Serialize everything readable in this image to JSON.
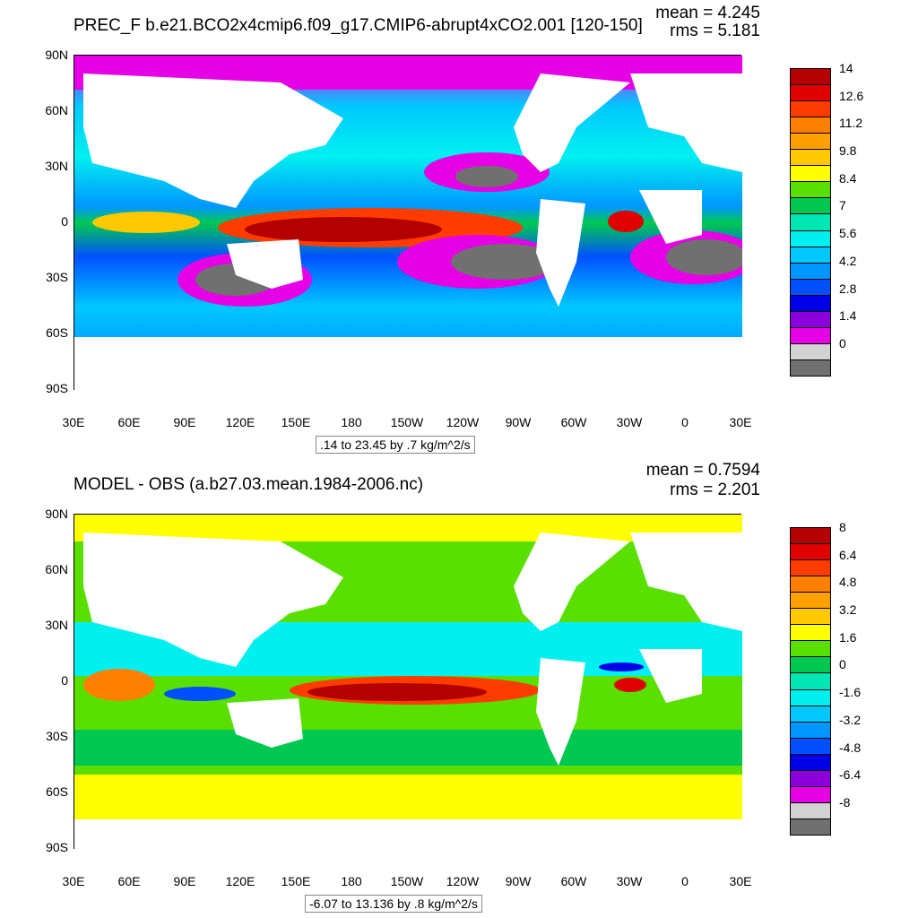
{
  "panels": [
    {
      "title": "PREC_F b.e21.BCO2x4cmip6.f09_g17.CMIP6-abrupt4xCO2.001 [120-150]",
      "mean": "mean = 4.245",
      "rms": "rms = 5.181",
      "range_label": ".14 to 23.45 by .7 kg/m^2/s",
      "lat_labels": [
        "90N",
        "60N",
        "30N",
        "0",
        "30S",
        "60S",
        "90S"
      ],
      "lon_labels": [
        "30E",
        "60E",
        "90E",
        "120E",
        "150E",
        "180",
        "150W",
        "120W",
        "90W",
        "60W",
        "30W",
        "0",
        "30E"
      ],
      "legend_labels": [
        "14",
        "12.6",
        "11.2",
        "9.8",
        "8.4",
        "7",
        "5.6",
        "4.2",
        "2.8",
        "1.4",
        "0"
      ],
      "legend_colors": [
        "#b30000",
        "#e00000",
        "#ff3c00",
        "#ff7f00",
        "#ffa000",
        "#ffc800",
        "#ffff00",
        "#5ae000",
        "#00c850",
        "#00e6b4",
        "#00f0f0",
        "#00c8ff",
        "#0096ff",
        "#0050ff",
        "#0000e6",
        "#8c00dc",
        "#e600e6",
        "#d2d2d2",
        "#707070"
      ]
    },
    {
      "title": "MODEL - OBS (a.b27.03.mean.1984-2006.nc)",
      "mean": "mean = 0.7594",
      "rms": "rms = 2.201",
      "range_label": "-6.07 to 13.136 by .8 kg/m^2/s",
      "lat_labels": [
        "90N",
        "60N",
        "30N",
        "0",
        "30S",
        "60S",
        "90S"
      ],
      "lon_labels": [
        "30E",
        "60E",
        "90E",
        "120E",
        "150E",
        "180",
        "150W",
        "120W",
        "90W",
        "60W",
        "30W",
        "0",
        "30E"
      ],
      "legend_labels": [
        "8",
        "6.4",
        "4.8",
        "3.2",
        "1.6",
        "0",
        "-1.6",
        "-3.2",
        "-4.8",
        "-6.4",
        "-8"
      ],
      "legend_colors": [
        "#b30000",
        "#e00000",
        "#ff3c00",
        "#ff7f00",
        "#ffa000",
        "#ffc800",
        "#ffff00",
        "#5ae000",
        "#00c850",
        "#00e6b4",
        "#00f0f0",
        "#00c8ff",
        "#0096ff",
        "#0050ff",
        "#0000e6",
        "#8c00dc",
        "#e600e6",
        "#d2d2d2",
        "#707070"
      ]
    }
  ]
}
